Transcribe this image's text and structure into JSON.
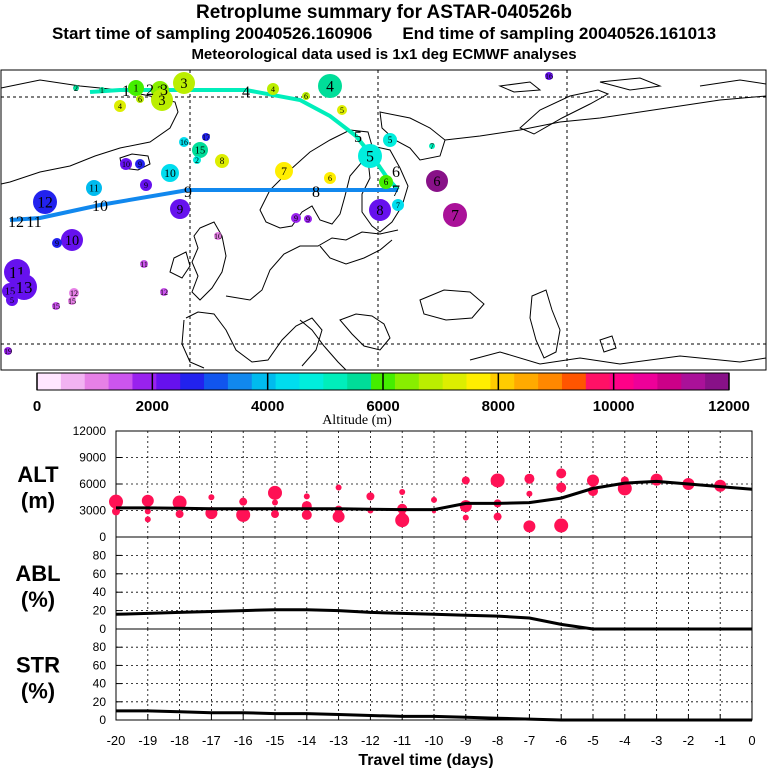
{
  "header": {
    "title": "Retroplume summary for ASTAR-040526b",
    "start_label": "Start time of sampling 20040526.160906",
    "end_label": "End time of sampling 20040526.161013",
    "met_label": "Meteorological data used is 1x1 deg ECMWF analyses"
  },
  "colorbar": {
    "ticks": [
      "0",
      "2000",
      "4000",
      "6000",
      "8000",
      "10000",
      "12000"
    ],
    "tick_values": [
      0,
      2000,
      4000,
      6000,
      8000,
      10000,
      12000
    ],
    "label": "Altitude (m)",
    "colors": [
      "#ffe6ff",
      "#f2b3f2",
      "#e680e6",
      "#cc55ee",
      "#9922ee",
      "#6611ee",
      "#2222ee",
      "#1155ee",
      "#1188ee",
      "#00bbee",
      "#00ddee",
      "#00eedd",
      "#00eebb",
      "#00dd99",
      "#44ee00",
      "#88ee00",
      "#bbee00",
      "#ddee00",
      "#ffee00",
      "#ffcc00",
      "#ffaa00",
      "#ff8800",
      "#ff5500",
      "#ff1166",
      "#ff0088",
      "#ee0099",
      "#cc0088",
      "#aa1199",
      "#881188"
    ]
  },
  "map": {
    "day_markers": [
      "1",
      "2",
      "3",
      "4",
      "5",
      "6",
      "7",
      "8",
      "9",
      "10",
      "11",
      "12",
      "13",
      "14",
      "15",
      "16",
      "17",
      "18",
      "19"
    ]
  },
  "chart_data": [
    {
      "type": "line",
      "name": "ALT",
      "ylabel": "ALT",
      "yunit": "(m)",
      "ylim": [
        0,
        12000
      ],
      "yticks": [
        "0",
        "3000",
        "6000",
        "9000",
        "12000"
      ],
      "x": [
        -20,
        -19,
        -18,
        -17,
        -16,
        -15,
        -14,
        -13,
        -12,
        -11,
        -10,
        -9,
        -8,
        -7,
        -6,
        -5,
        -4,
        -3,
        -2,
        -1,
        0
      ],
      "series": [
        {
          "name": "mean altitude",
          "values": [
            3300,
            3300,
            3250,
            3200,
            3200,
            3200,
            3200,
            3200,
            3150,
            3100,
            3100,
            3800,
            3800,
            3900,
            4400,
            5500,
            6100,
            6300,
            6000,
            5700,
            5400
          ]
        },
        {
          "name": "cluster altitude",
          "points": [
            [
              -20,
              4000
            ],
            [
              -20,
              2900
            ],
            [
              -19,
              4100
            ],
            [
              -19,
              2900
            ],
            [
              -19,
              2000
            ],
            [
              -18,
              3900
            ],
            [
              -18,
              2600
            ],
            [
              -17,
              4500
            ],
            [
              -17,
              2700
            ],
            [
              -16,
              4000
            ],
            [
              -16,
              2500
            ],
            [
              -15,
              3900
            ],
            [
              -15,
              2600
            ],
            [
              -15,
              5000
            ],
            [
              -14,
              3500
            ],
            [
              -14,
              4600
            ],
            [
              -14,
              2500
            ],
            [
              -13,
              3100
            ],
            [
              -13,
              2300
            ],
            [
              -13,
              5600
            ],
            [
              -12,
              3000
            ],
            [
              -12,
              4600
            ],
            [
              -11,
              3200
            ],
            [
              -11,
              2400
            ],
            [
              -11,
              5100
            ],
            [
              -11,
              1900
            ],
            [
              -10,
              4200
            ],
            [
              -10,
              2900
            ],
            [
              -9,
              3500
            ],
            [
              -9,
              6400
            ],
            [
              -9,
              2200
            ],
            [
              -8,
              3800
            ],
            [
              -8,
              6400
            ],
            [
              -8,
              2300
            ],
            [
              -7,
              1200
            ],
            [
              -7,
              6600
            ],
            [
              -7,
              4900
            ],
            [
              -6,
              1300
            ],
            [
              -6,
              7200
            ],
            [
              -6,
              5600
            ],
            [
              -5,
              5200
            ],
            [
              -5,
              6400
            ],
            [
              -4,
              6400
            ],
            [
              -4,
              5500
            ],
            [
              -3,
              6500
            ],
            [
              -2,
              6000
            ],
            [
              -1,
              5800
            ]
          ]
        }
      ]
    },
    {
      "type": "line",
      "name": "ABL",
      "ylabel": "ABL",
      "yunit": "(%)",
      "ylim": [
        0,
        100
      ],
      "yticks": [
        "0",
        "20",
        "40",
        "60",
        "80"
      ],
      "x": [
        -20,
        -19,
        -18,
        -17,
        -16,
        -15,
        -14,
        -13,
        -12,
        -11,
        -10,
        -9,
        -8,
        -7,
        -6,
        -5,
        -4,
        -3,
        -2,
        -1,
        0
      ],
      "values": [
        16,
        17,
        18,
        19,
        20,
        21,
        21,
        20,
        18,
        17,
        16,
        15,
        14,
        12,
        5,
        0,
        0,
        0,
        0,
        0,
        0
      ]
    },
    {
      "type": "line",
      "name": "STR",
      "ylabel": "STR",
      "yunit": "(%)",
      "ylim": [
        0,
        100
      ],
      "yticks": [
        "0",
        "20",
        "40",
        "60",
        "80"
      ],
      "x": [
        -20,
        -19,
        -18,
        -17,
        -16,
        -15,
        -14,
        -13,
        -12,
        -11,
        -10,
        -9,
        -8,
        -7,
        -6,
        -5,
        -4,
        -3,
        -2,
        -1,
        0
      ],
      "values": [
        10,
        10,
        9,
        8,
        8,
        7,
        7,
        6,
        5,
        4,
        4,
        3,
        2,
        1,
        0,
        0,
        0,
        0,
        0,
        0,
        0
      ]
    },
    {
      "type": "axis",
      "xlabel": "Travel time (days)",
      "xticks": [
        "-20",
        "-19",
        "-18",
        "-17",
        "-16",
        "-15",
        "-14",
        "-13",
        "-12",
        "-11",
        "-10",
        "-9",
        "-8",
        "-7",
        "-6",
        "-5",
        "-4",
        "-3",
        "-2",
        "-1",
        "0"
      ]
    }
  ]
}
